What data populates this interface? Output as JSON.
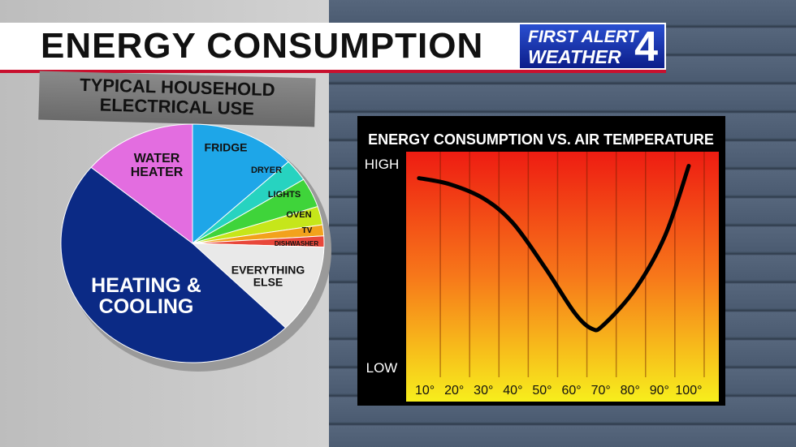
{
  "header": {
    "title": "ENERGY CONSUMPTION",
    "logo": {
      "line1": "FIRST ALERT",
      "line2": "WEATHER",
      "number": "4"
    }
  },
  "chart_data": [
    {
      "type": "pie",
      "title": "TYPICAL HOUSEHOLD ELECTRICAL USE",
      "categories": [
        "FRIDGE",
        "DRYER",
        "LIGHTS",
        "OVEN",
        "TV",
        "DISHWASHER",
        "EVERYTHING ELSE",
        "HEATING & COOLING",
        "WATER HEATER"
      ],
      "values": [
        13,
        3,
        4,
        2.5,
        1.5,
        1.5,
        12,
        48.5,
        14
      ],
      "colors": [
        "#1ea6e8",
        "#27d3c0",
        "#3fd43a",
        "#c6e61a",
        "#f2a21c",
        "#e8473a",
        "#e9e9e9",
        "#0b2a85",
        "#e36de0"
      ]
    },
    {
      "type": "line",
      "title": "ENERGY CONSUMPTION VS. AIR TEMPERATURE",
      "x": [
        8,
        18.5,
        30,
        40,
        51,
        61,
        67,
        71,
        82,
        92,
        100
      ],
      "values": [
        9.3,
        9.0,
        8.3,
        7.1,
        4.9,
        2.7,
        1.9,
        2.1,
        3.9,
        6.5,
        9.9
      ],
      "color": "#000000",
      "xlim": [
        0,
        105
      ],
      "ylim": [
        0,
        10
      ],
      "xticks": [
        {
          "value": 10,
          "label": "10°"
        },
        {
          "value": 20,
          "label": "20°"
        },
        {
          "value": 30,
          "label": "30°"
        },
        {
          "value": 40,
          "label": "40°"
        },
        {
          "value": 50,
          "label": "50°"
        },
        {
          "value": 60,
          "label": "60°"
        },
        {
          "value": 70,
          "label": "70°"
        },
        {
          "value": 80,
          "label": "80°"
        },
        {
          "value": 90,
          "label": "90°"
        },
        {
          "value": 100,
          "label": "100°"
        }
      ],
      "yticks": [
        {
          "value": 0,
          "label": "LOW"
        },
        {
          "value": 10,
          "label": "HIGH"
        }
      ],
      "grid": true
    }
  ]
}
